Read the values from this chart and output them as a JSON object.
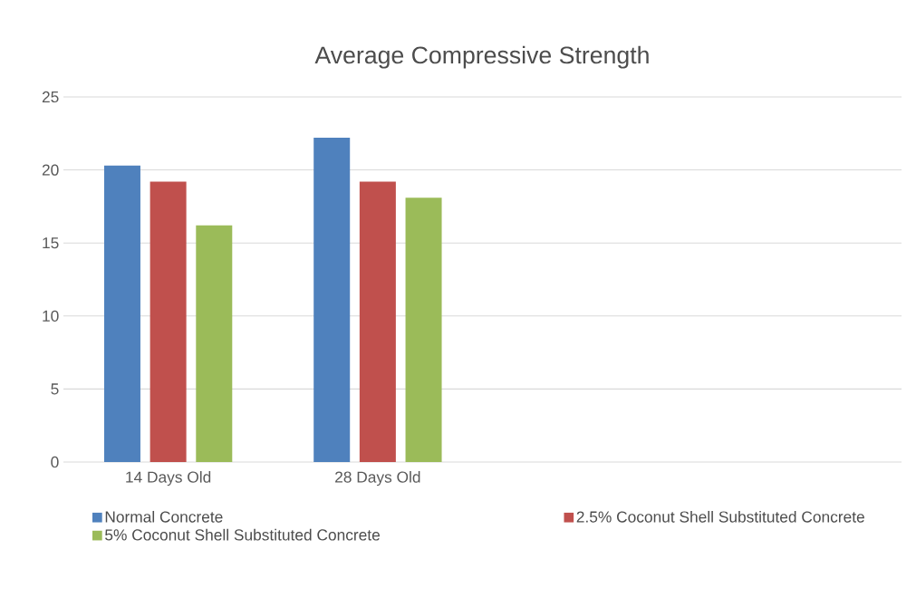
{
  "chart_data": {
    "type": "bar",
    "title": "Average Compressive Strength",
    "categories": [
      "14 Days Old",
      "28 Days Old",
      null,
      null
    ],
    "series": [
      {
        "name": "Normal Concrete",
        "color": "#4f81bd",
        "values": [
          20.3,
          22.2,
          null,
          null
        ]
      },
      {
        "name": "2.5% Coconut Shell Substituted Concrete",
        "color": "#c0504d",
        "values": [
          19.2,
          19.2,
          null,
          null
        ]
      },
      {
        "name": "5% Coconut Shell Substituted Concrete",
        "color": "#9bbb59",
        "values": [
          16.2,
          18.1,
          null,
          null
        ]
      }
    ],
    "ylim": [
      0,
      25
    ],
    "yticks": [
      0,
      5,
      10,
      15,
      20,
      25
    ],
    "grid": "y",
    "legend": "bottom"
  }
}
